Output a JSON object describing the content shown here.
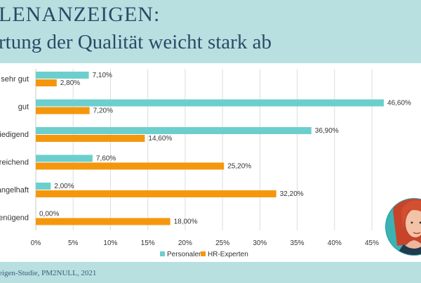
{
  "title_line1": "LENANZEIGEN:",
  "title_line2": "rtung der Qualität weicht stark ab",
  "footer": "eigen-Studie, PM2NULL, 2021",
  "colors": {
    "personaler": "#6ccfce",
    "hr_experten": "#f5970c",
    "background": "#b8e0e1",
    "title": "#2c4a66"
  },
  "chart_data": {
    "type": "bar",
    "orientation": "horizontal",
    "categories": [
      "sehr gut",
      "gut",
      "riedigend",
      "sreichend",
      "angelhaft",
      "genügend"
    ],
    "series": [
      {
        "name": "Personaler",
        "values": [
          7.1,
          46.6,
          36.9,
          7.6,
          2.0,
          0.0
        ],
        "labels": [
          "7,10%",
          "46,60%",
          "36,90%",
          "7,60%",
          "2,00%",
          "0,00%"
        ]
      },
      {
        "name": "HR-Experten",
        "values": [
          2.8,
          7.2,
          14.6,
          25.2,
          32.2,
          18.0
        ],
        "labels": [
          "2,80%",
          "7,20%",
          "14,60%",
          "25,20%",
          "32,20%",
          "18,00%"
        ]
      }
    ],
    "xlim": [
      0,
      45
    ],
    "x_ticks": [
      "0%",
      "5%",
      "10%",
      "15%",
      "20%",
      "25%",
      "30%",
      "35%",
      "40%",
      "45%"
    ],
    "grid": true,
    "legend_position": "bottom"
  }
}
